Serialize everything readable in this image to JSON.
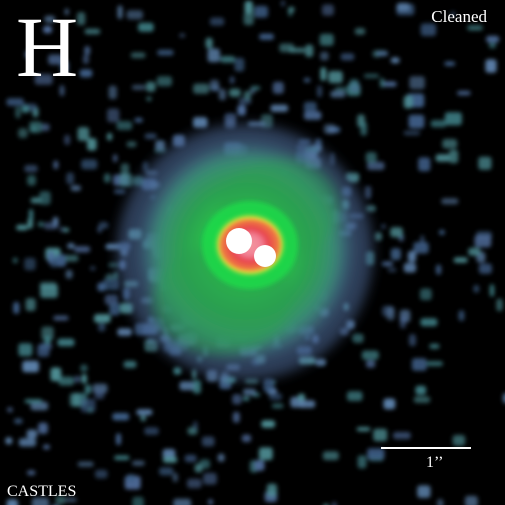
{
  "image": {
    "band_label": "H",
    "status_label": "Cleaned",
    "credit_label": "CASTLES",
    "scale_bar_label": "1’’",
    "colors": {
      "background": "#000000",
      "noise_blue": "#4f6c9a",
      "noise_teal": "#4e8f95",
      "halo_green": "#2f9b53",
      "core_green": "#1fdc4a",
      "ring_yellow": "#f0df3a",
      "ring_orange": "#f39a36",
      "ring_red": "#e8424f",
      "core_white": "#ffffff"
    }
  }
}
